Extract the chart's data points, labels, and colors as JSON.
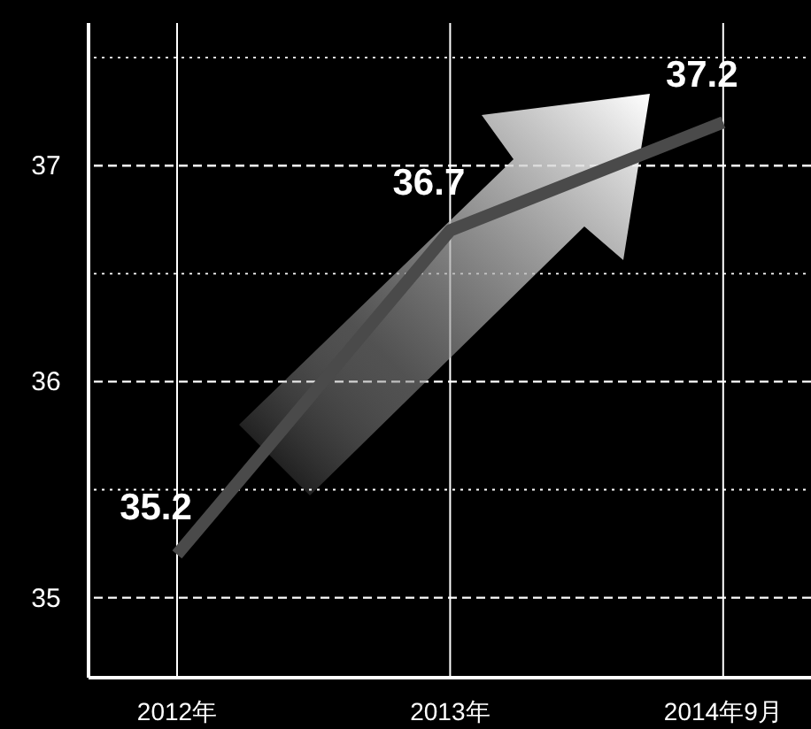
{
  "chart_data": {
    "type": "line",
    "categories": [
      "2012年",
      "2013年",
      "2014年9月"
    ],
    "series": [
      {
        "color": "#4a4a4a",
        "values": [
          35.2,
          36.7,
          37.2
        ]
      }
    ],
    "ylim": [
      34.63,
      37.66
    ],
    "yticks": [
      35,
      {
        "value": 35.5,
        "label": null
      },
      36,
      {
        "value": 36.5,
        "label": null
      },
      37,
      {
        "value": 37.5,
        "label": null
      }
    ],
    "grid": true,
    "marker": "none",
    "line_style": "solid",
    "data_labels": true
  }
}
